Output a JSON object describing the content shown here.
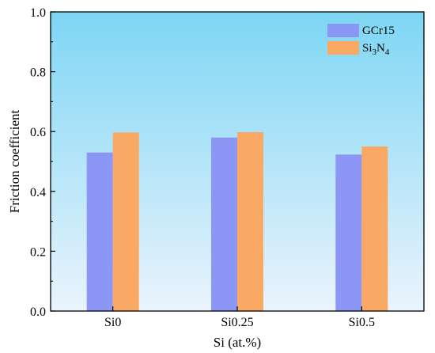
{
  "chart_data": {
    "type": "bar",
    "title": "",
    "xlabel": "Si (at.%)",
    "ylabel": "Friction coefficient",
    "categories": [
      "Si0",
      "Si0.25",
      "Si0.5"
    ],
    "series": [
      {
        "name": "GCr15",
        "values": [
          0.53,
          0.58,
          0.523
        ],
        "color": "#8c96f5"
      },
      {
        "name": "Si3N4",
        "name_main": "Si",
        "name_sub1": "3",
        "name_mid": "N",
        "name_sub2": "4",
        "values": [
          0.597,
          0.598,
          0.55
        ],
        "color": "#f9a964"
      }
    ],
    "ylim": [
      0,
      1.0
    ],
    "yticks": [
      "0.0",
      "0.2",
      "0.4",
      "0.6",
      "0.8",
      "1.0"
    ],
    "ytick_values": [
      0,
      0.2,
      0.4,
      0.6,
      0.8,
      1.0
    ],
    "grid": false,
    "legend_position": "top-right",
    "background_gradient": [
      "#7dd6f4",
      "#eaf4fd"
    ]
  }
}
